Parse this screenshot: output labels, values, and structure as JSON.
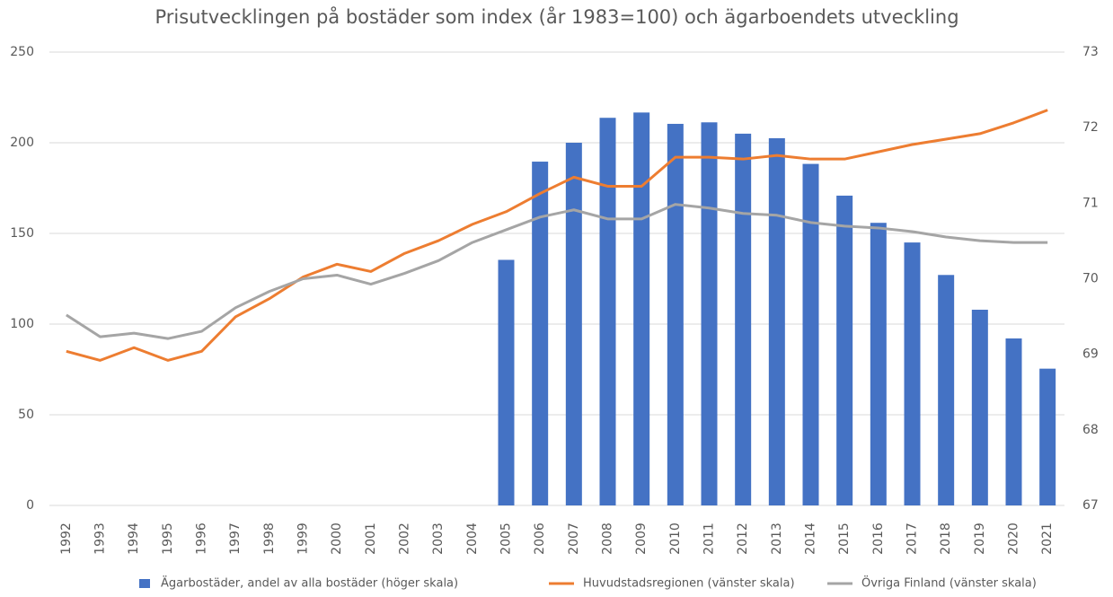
{
  "chart_data": {
    "type": "bar_line",
    "title": "Prisutvecklingen på bostäder som index (år 1983=100) och ägarboendets utveckling",
    "categories": [
      "1992",
      "1993",
      "1994",
      "1995",
      "1996",
      "1997",
      "1998",
      "1999",
      "2000",
      "2001",
      "2002",
      "2003",
      "2004",
      "2005",
      "2006",
      "2007",
      "2008",
      "2009",
      "2010",
      "2011",
      "2012",
      "2013",
      "2014",
      "2015",
      "2016",
      "2017",
      "2018",
      "2019",
      "2020",
      "2021"
    ],
    "series": [
      {
        "name": "Ägarbostäder, andel av alla bostäder (höger skala)",
        "type": "bar",
        "axis": "y2",
        "color": "#4472c4",
        "values": [
          null,
          null,
          null,
          null,
          null,
          null,
          null,
          null,
          null,
          null,
          null,
          null,
          null,
          70.25,
          71.55,
          71.8,
          72.13,
          72.2,
          72.05,
          72.07,
          71.92,
          71.86,
          71.52,
          71.1,
          70.74,
          70.48,
          70.05,
          69.59,
          69.21,
          68.81
        ]
      },
      {
        "name": "Huvudstadsregionen (vänster skala)",
        "type": "line",
        "color": "#ed7d31",
        "values": [
          85,
          80,
          87,
          80,
          85,
          104,
          114,
          126,
          133,
          129,
          139,
          146,
          155,
          162,
          172,
          181,
          176,
          176,
          192,
          192,
          191,
          193,
          191,
          191,
          195,
          199,
          202,
          205,
          211,
          218
        ]
      },
      {
        "name": "Övriga Finland (vänster skala)",
        "type": "line",
        "color": "#a5a5a5",
        "values": [
          105,
          93,
          95,
          92,
          96,
          109,
          118,
          125,
          127,
          122,
          128,
          135,
          145,
          152,
          159,
          163,
          158,
          158,
          166,
          164,
          161,
          160,
          156,
          154,
          153,
          151,
          148,
          146,
          145,
          145
        ]
      }
    ],
    "ylim": [
      0,
      250
    ],
    "yticks": [
      0,
      50,
      100,
      150,
      200,
      250
    ],
    "y2lim": [
      67,
      73
    ],
    "y2ticks": [
      67,
      68,
      69,
      70,
      71,
      72,
      73
    ],
    "grid": true,
    "legend": "bottom"
  }
}
